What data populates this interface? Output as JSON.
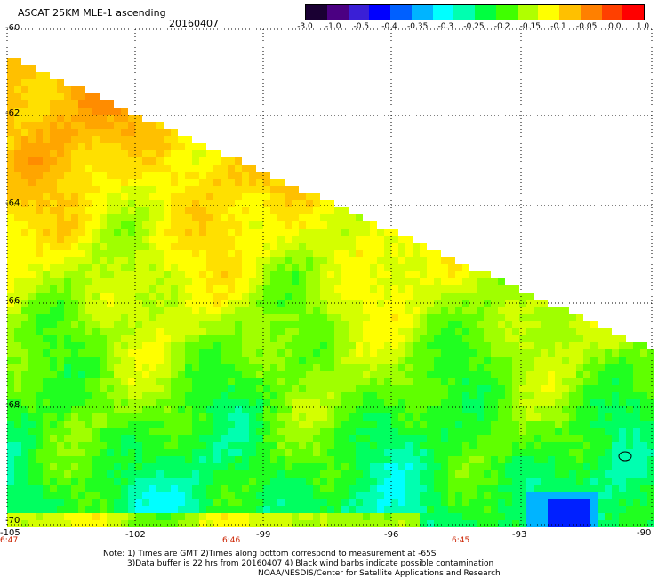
{
  "header": {
    "title": "ASCAT 25KM MLE-1 ascending",
    "date": "20160407"
  },
  "colorbar": {
    "labels": [
      "-3.0",
      "-1.0",
      "-0.5",
      "-0.4",
      "-0.35",
      "-0.3",
      "-0.25",
      "-0.2",
      "-0.15",
      "-0.1",
      "-0.05",
      "0.0",
      "1.0"
    ],
    "colors": [
      "#1a0033",
      "#4b0082",
      "#3a1fd6",
      "#0000ff",
      "#0060ff",
      "#00b4ff",
      "#00ffff",
      "#00ffb0",
      "#00ff40",
      "#40ff00",
      "#b0ff00",
      "#ffff00",
      "#ffc000",
      "#ff8000",
      "#ff4000",
      "#ff0000"
    ]
  },
  "axes": {
    "y_labels": [
      "-60",
      "-62",
      "-64",
      "-66",
      "-68",
      "-70"
    ],
    "x_labels": [
      "-105",
      "-102",
      "-99",
      "-96",
      "-93",
      "-90"
    ]
  },
  "time_labels": [
    "6:47",
    "6:46",
    "6:45"
  ],
  "notes": {
    "line1": "Note: 1) Times are GMT 2)Times along bottom correspond to measurement at -65S",
    "line2": "3)Data buffer is 22 hrs from 20160407 4) Black wind barbs indicate possible contamination",
    "line3": "NOAA/NESDIS/Center for Satellite Applications and Research"
  }
}
